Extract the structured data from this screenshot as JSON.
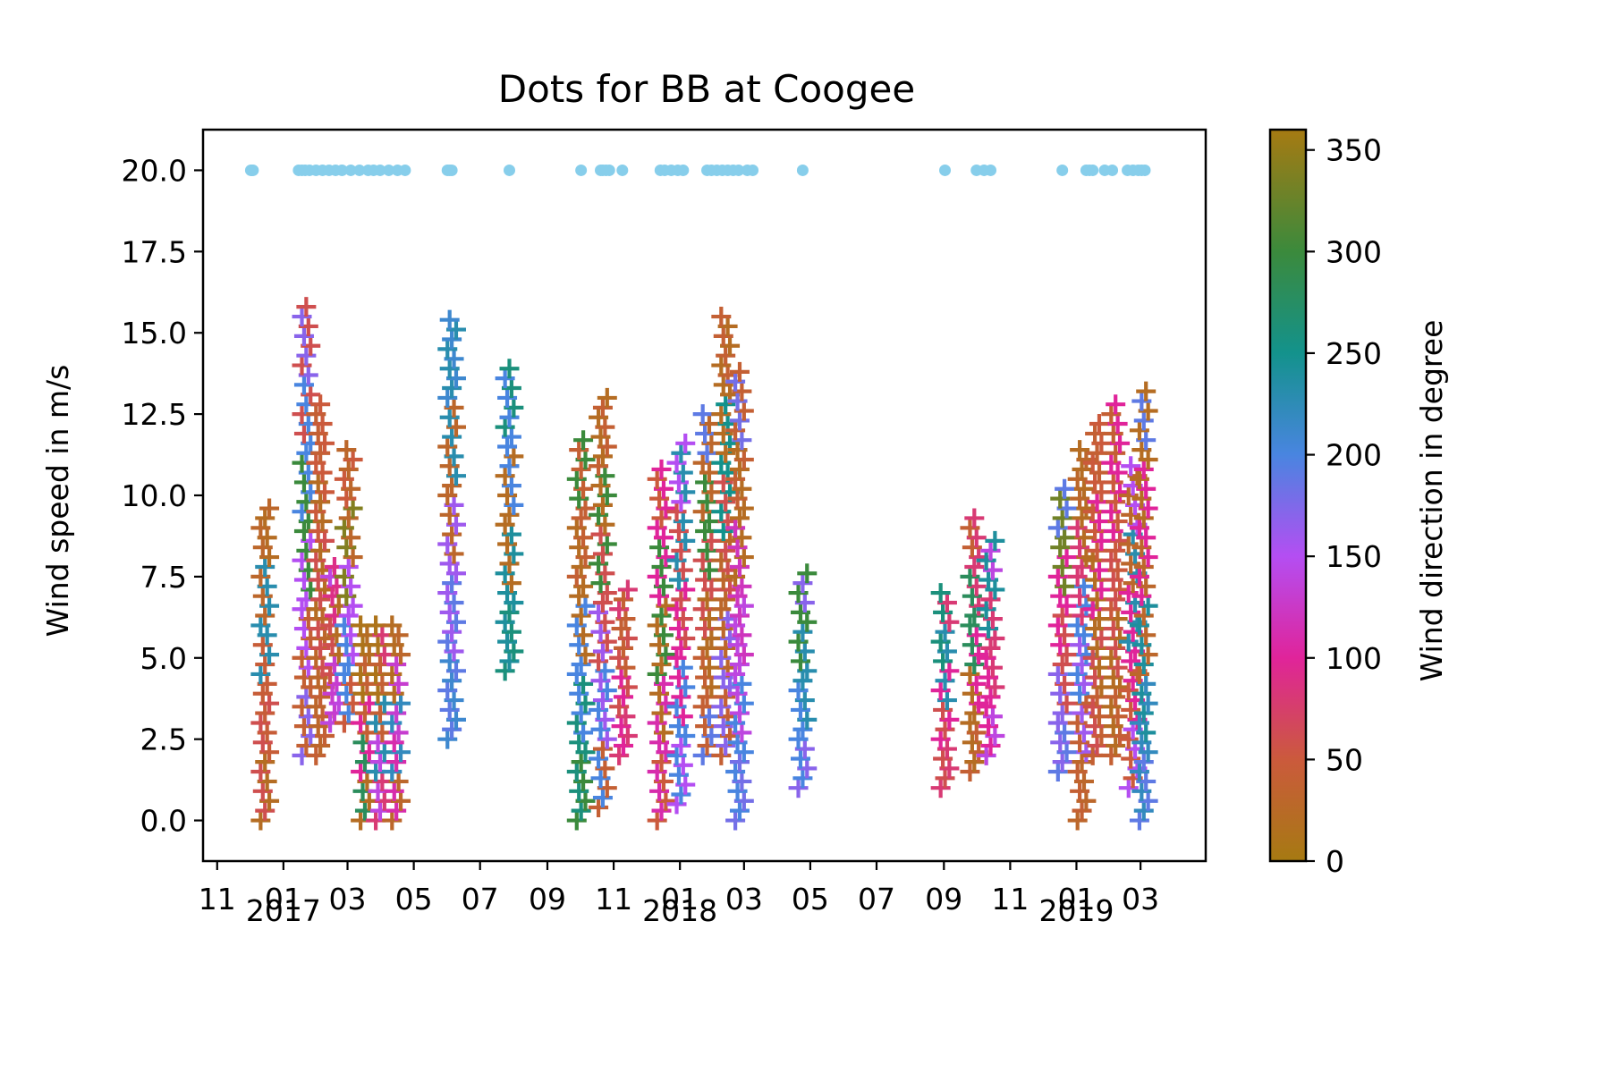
{
  "chart_data": {
    "type": "scatter",
    "title": "Dots for BB at Coogee",
    "ylabel": "Wind speed in m/s",
    "xlabel": "",
    "ylim": [
      -1.25,
      21.25
    ],
    "xlim": [
      "2016-10-19",
      "2019-04-30"
    ],
    "yticks": [
      0.0,
      2.5,
      5.0,
      7.5,
      10.0,
      12.5,
      15.0,
      17.5,
      20.0
    ],
    "ytick_labels": [
      "0.0",
      "2.5",
      "5.0",
      "7.5",
      "10.0",
      "12.5",
      "15.0",
      "17.5",
      "20.0"
    ],
    "xticks": [
      {
        "date": "2016-11-01",
        "label": "11"
      },
      {
        "date": "2017-01-01",
        "label": "01",
        "year": "2017"
      },
      {
        "date": "2017-03-01",
        "label": "03"
      },
      {
        "date": "2017-05-01",
        "label": "05"
      },
      {
        "date": "2017-07-01",
        "label": "07"
      },
      {
        "date": "2017-09-01",
        "label": "09"
      },
      {
        "date": "2017-11-01",
        "label": "11"
      },
      {
        "date": "2018-01-01",
        "label": "01",
        "year": "2018"
      },
      {
        "date": "2018-03-01",
        "label": "03"
      },
      {
        "date": "2018-05-01",
        "label": "05"
      },
      {
        "date": "2018-07-01",
        "label": "07"
      },
      {
        "date": "2018-09-01",
        "label": "09"
      },
      {
        "date": "2018-11-01",
        "label": "11"
      },
      {
        "date": "2019-01-01",
        "label": "01",
        "year": "2019"
      },
      {
        "date": "2019-03-01",
        "label": "03"
      }
    ],
    "marker_dates": [
      "2016-12-02",
      "2016-12-03",
      "2016-12-04",
      "2017-01-15",
      "2017-01-18",
      "2017-01-21",
      "2017-01-25",
      "2017-01-31",
      "2017-02-06",
      "2017-02-12",
      "2017-02-18",
      "2017-02-24",
      "2017-03-04",
      "2017-03-12",
      "2017-03-20",
      "2017-03-25",
      "2017-03-31",
      "2017-04-08",
      "2017-04-16",
      "2017-04-23",
      "2017-06-01",
      "2017-06-03",
      "2017-06-05",
      "2017-07-28",
      "2017-10-02",
      "2017-10-20",
      "2017-10-22",
      "2017-10-25",
      "2017-10-28",
      "2017-11-09",
      "2017-12-14",
      "2017-12-18",
      "2017-12-24",
      "2017-12-30",
      "2018-01-04",
      "2018-01-26",
      "2018-01-30",
      "2018-02-04",
      "2018-02-09",
      "2018-02-14",
      "2018-02-19",
      "2018-02-24",
      "2018-03-04",
      "2018-03-09",
      "2018-04-24",
      "2018-09-02",
      "2018-10-01",
      "2018-10-08",
      "2018-10-14",
      "2018-12-19",
      "2019-01-10",
      "2019-01-13",
      "2019-01-16",
      "2019-01-27",
      "2019-02-03",
      "2019-02-17",
      "2019-02-22",
      "2019-02-27",
      "2019-03-02",
      "2019-03-05"
    ],
    "marker_value": 20.0,
    "marker_color": "#87ceeb",
    "clusters": [
      {
        "date": "2016-12-15",
        "ymin": 0.0,
        "ymax": 9.8,
        "dir": [
          20,
          60,
          45,
          230,
          30
        ]
      },
      {
        "date": "2017-01-22",
        "ymin": 2.0,
        "ymax": 16.0,
        "dir": [
          170,
          40,
          150,
          300,
          200,
          60
        ]
      },
      {
        "date": "2017-02-04",
        "ymin": 2.0,
        "ymax": 13.0,
        "dir": [
          40,
          30,
          60,
          20,
          50
        ]
      },
      {
        "date": "2017-02-17",
        "ymin": 3.0,
        "ymax": 8.0,
        "dir": [
          140,
          130,
          60,
          20,
          90
        ]
      },
      {
        "date": "2017-03-02",
        "ymin": 3.0,
        "ymax": 11.4,
        "dir": [
          50,
          200,
          150,
          340,
          30
        ]
      },
      {
        "date": "2017-03-17",
        "ymin": 0.0,
        "ymax": 6.0,
        "dir": [
          20,
          280,
          100,
          40,
          10
        ]
      },
      {
        "date": "2017-03-31",
        "ymin": 0.0,
        "ymax": 6.2,
        "dir": [
          80,
          140,
          230,
          40,
          10
        ]
      },
      {
        "date": "2017-04-15",
        "ymin": 0.0,
        "ymax": 6.2,
        "dir": [
          30,
          110,
          220,
          130,
          20
        ]
      },
      {
        "date": "2017-06-05",
        "ymin": 2.5,
        "ymax": 15.4,
        "dir": [
          210,
          190,
          160,
          30,
          230
        ]
      },
      {
        "date": "2017-07-28",
        "ymin": 4.6,
        "ymax": 14.0,
        "dir": [
          260,
          240,
          20,
          200
        ]
      },
      {
        "date": "2017-10-02",
        "ymin": 0.0,
        "ymax": 11.8,
        "dir": [
          300,
          260,
          200,
          20,
          40
        ]
      },
      {
        "date": "2017-10-22",
        "ymin": 0.4,
        "ymax": 13.0,
        "dir": [
          40,
          200,
          160,
          60,
          300,
          20
        ]
      },
      {
        "date": "2017-11-10",
        "ymin": 2.0,
        "ymax": 7.2,
        "dir": [
          80,
          100,
          60,
          40
        ]
      },
      {
        "date": "2017-12-15",
        "ymin": 0.0,
        "ymax": 11.0,
        "dir": [
          50,
          110,
          20,
          300,
          100
        ]
      },
      {
        "date": "2018-01-02",
        "ymin": 0.5,
        "ymax": 11.8,
        "dir": [
          150,
          200,
          100,
          60,
          230
        ]
      },
      {
        "date": "2018-01-26",
        "ymin": 2.0,
        "ymax": 12.5,
        "dir": [
          190,
          40,
          20,
          60,
          300,
          30
        ]
      },
      {
        "date": "2018-02-12",
        "ymin": 2.0,
        "ymax": 15.5,
        "dir": [
          40,
          170,
          30,
          60,
          250,
          20
        ]
      },
      {
        "date": "2018-02-25",
        "ymin": 0.0,
        "ymax": 14.0,
        "dir": [
          180,
          200,
          140,
          120,
          20,
          40
        ]
      },
      {
        "date": "2018-04-24",
        "ymin": 1.0,
        "ymax": 7.8,
        "dir": [
          170,
          200,
          230,
          300
        ]
      },
      {
        "date": "2018-09-02",
        "ymin": 1.0,
        "ymax": 7.2,
        "dir": [
          80,
          60,
          100,
          230,
          260
        ]
      },
      {
        "date": "2018-09-29",
        "ymin": 1.5,
        "ymax": 9.4,
        "dir": [
          40,
          20,
          100,
          280,
          80
        ]
      },
      {
        "date": "2018-10-14",
        "ymin": 2.0,
        "ymax": 8.8,
        "dir": [
          140,
          100,
          80,
          240
        ]
      },
      {
        "date": "2018-12-19",
        "ymin": 1.5,
        "ymax": 10.4,
        "dir": [
          190,
          170,
          60,
          100,
          330
        ]
      },
      {
        "date": "2019-01-06",
        "ymin": 0.0,
        "ymax": 11.4,
        "dir": [
          30,
          40,
          160,
          200,
          80,
          20
        ]
      },
      {
        "date": "2019-01-20",
        "ymin": 2.0,
        "ymax": 12.2,
        "dir": [
          40,
          60,
          20,
          100,
          50
        ]
      },
      {
        "date": "2019-02-06",
        "ymin": 2.0,
        "ymax": 13.0,
        "dir": [
          40,
          20,
          60,
          50,
          100
        ]
      },
      {
        "date": "2019-02-22",
        "ymin": 1.0,
        "ymax": 11.0,
        "dir": [
          150,
          50,
          100,
          230,
          30
        ]
      },
      {
        "date": "2019-03-04",
        "ymin": 0.0,
        "ymax": 13.4,
        "dir": [
          190,
          220,
          240,
          30,
          100,
          20
        ]
      }
    ],
    "colorbar": {
      "label": "Wind direction in degree",
      "range": [
        0,
        360
      ],
      "ticks": [
        0,
        50,
        100,
        150,
        200,
        250,
        300,
        350
      ],
      "tick_labels": [
        "0",
        "50",
        "100",
        "150",
        "200",
        "250",
        "300",
        "350"
      ],
      "stops": [
        {
          "value": 0,
          "color": "#a67a12"
        },
        {
          "value": 50,
          "color": "#cb5a3c"
        },
        {
          "value": 100,
          "color": "#e0249a"
        },
        {
          "value": 150,
          "color": "#b44ef2"
        },
        {
          "value": 200,
          "color": "#4985e0"
        },
        {
          "value": 250,
          "color": "#13928c"
        },
        {
          "value": 300,
          "color": "#3b8a3c"
        },
        {
          "value": 360,
          "color": "#a67a12"
        }
      ]
    },
    "grid": false,
    "legend": "none"
  }
}
